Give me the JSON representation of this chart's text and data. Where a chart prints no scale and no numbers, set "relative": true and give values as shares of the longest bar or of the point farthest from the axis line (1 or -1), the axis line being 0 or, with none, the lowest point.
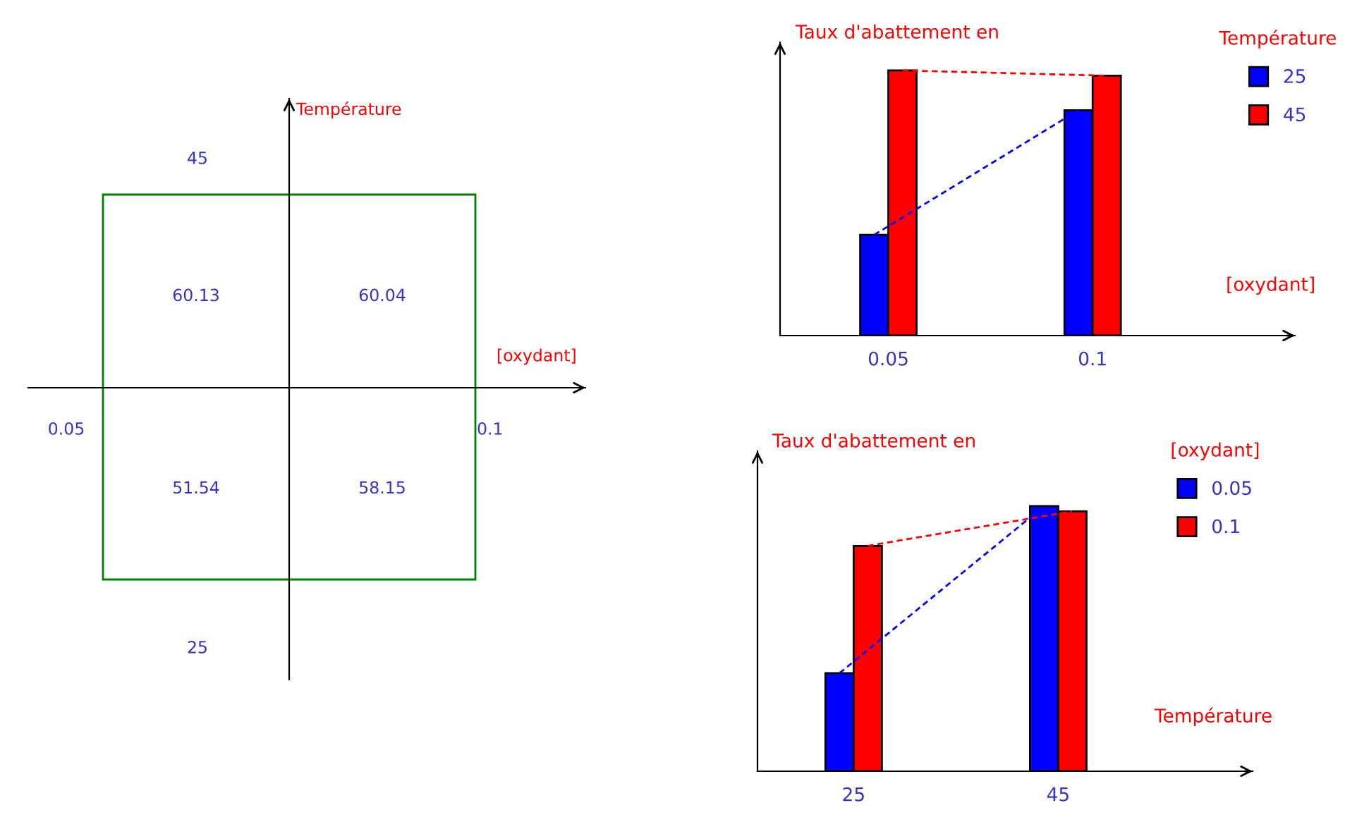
{
  "chart_data": [
    {
      "type": "heatmap",
      "xlabel": "[oxydant]",
      "ylabel": "Température",
      "categories": [
        "0.05",
        "0.1"
      ],
      "y_categories": [
        "45",
        "25"
      ],
      "cells": [
        [
          60.13,
          60.04
        ],
        [
          51.54,
          58.15
        ]
      ],
      "data_labels": true
    },
    {
      "type": "bar",
      "relative": true,
      "ylabel": "Taux d'abattement en",
      "xlabel": "[oxydant]",
      "legend_title": "Température",
      "legend": "right",
      "categories": [
        "0.05",
        "0.1"
      ],
      "series": [
        {
          "name": "25",
          "color": "#0000ff",
          "line_style": "dashed",
          "values": [
            0.38,
            0.85
          ]
        },
        {
          "name": "45",
          "color": "#ff0000",
          "line_style": "dashed",
          "values": [
            1,
            0.98
          ]
        }
      ]
    },
    {
      "type": "bar",
      "relative": true,
      "ylabel": "Taux d'abattement en",
      "xlabel": "Température",
      "legend_title": "[oxydant]",
      "legend": "right",
      "categories": [
        "25",
        "45"
      ],
      "series": [
        {
          "name": "0.05",
          "color": "#0000ff",
          "line_style": "dashed",
          "values": [
            0.37,
            1
          ]
        },
        {
          "name": "0.1",
          "color": "#ff0000",
          "line_style": "dashed",
          "values": [
            0.85,
            0.98
          ]
        }
      ]
    }
  ]
}
